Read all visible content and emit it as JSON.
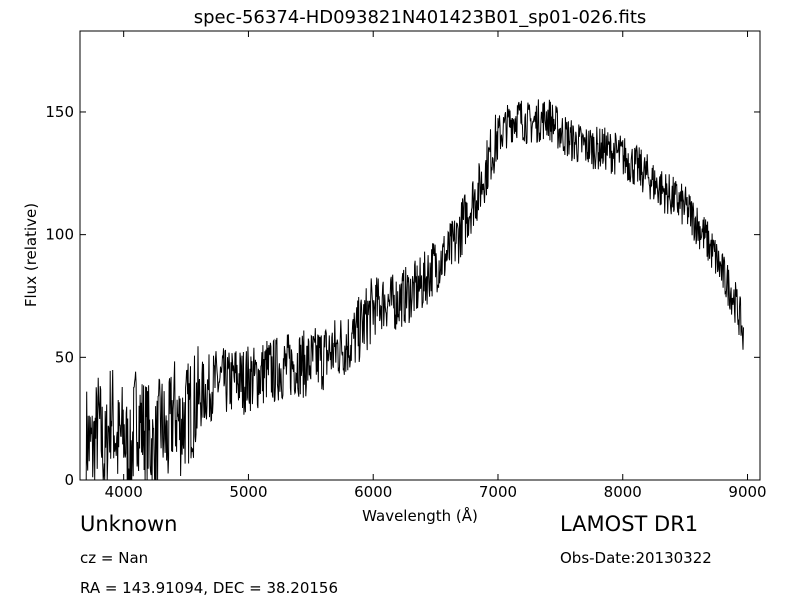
{
  "chart_data": {
    "type": "line",
    "title": "spec-56374-HD093821N401423B01_sp01-026.fits",
    "xlabel": "Wavelength (Å)",
    "ylabel": "Flux (relative)",
    "xlim": [
      3650,
      9100
    ],
    "ylim": [
      0,
      183
    ],
    "xticks": [
      4000,
      5000,
      6000,
      7000,
      8000,
      9000
    ],
    "yticks": [
      0,
      50,
      100,
      150
    ],
    "grid": false,
    "series": [
      {
        "x": [
          3700,
          3750,
          3800,
          3850,
          3900,
          3950,
          4000,
          4050,
          4100,
          4150,
          4200,
          4250,
          4300,
          4350,
          4400,
          4450,
          4500,
          4550,
          4600,
          4650,
          4700,
          4750,
          4800,
          4850,
          4900,
          4950,
          5000,
          5050,
          5100,
          5150,
          5200,
          5250,
          5300,
          5350,
          5400,
          5450,
          5500,
          5550,
          5600,
          5650,
          5700,
          5750,
          5800,
          5850,
          5900,
          5950,
          6000,
          6050,
          6100,
          6150,
          6200,
          6250,
          6300,
          6350,
          6400,
          6450,
          6500,
          6550,
          6600,
          6650,
          6700,
          6750,
          6800,
          6850,
          6900,
          6950,
          7000,
          7050,
          7100,
          7150,
          7200,
          7250,
          7300,
          7350,
          7400,
          7450,
          7500,
          7550,
          7600,
          7650,
          7700,
          7750,
          7800,
          7850,
          7900,
          7950,
          8000,
          8050,
          8100,
          8150,
          8200,
          8250,
          8300,
          8350,
          8400,
          8450,
          8500,
          8550,
          8600,
          8650,
          8700,
          8750,
          8800,
          8850,
          8900,
          8950,
          8970
        ],
        "y": [
          18,
          12,
          24,
          8,
          30,
          14,
          20,
          6,
          28,
          22,
          18,
          10,
          24,
          14,
          30,
          22,
          26,
          30,
          33,
          36,
          38,
          40,
          40,
          39,
          42,
          40,
          42,
          41,
          43,
          45,
          44,
          46,
          46,
          47,
          48,
          47,
          48,
          49,
          50,
          52,
          53,
          55,
          56,
          58,
          62,
          66,
          70,
          72,
          73,
          72,
          73,
          75,
          76,
          78,
          80,
          85,
          88,
          90,
          92,
          96,
          102,
          108,
          114,
          118,
          126,
          134,
          140,
          143,
          146,
          148,
          147,
          145,
          146,
          147,
          148,
          145,
          142,
          140,
          138,
          137,
          136,
          136,
          135,
          135,
          134,
          133,
          132,
          130,
          128,
          126,
          124,
          121,
          119,
          117,
          115,
          113,
          111,
          108,
          104,
          100,
          95,
          90,
          84,
          79,
          73,
          64,
          56
        ]
      }
    ]
  },
  "info": {
    "object_class": "Unknown",
    "cz": "cz = Nan",
    "radec": "RA = 143.91094, DEC = 38.20156",
    "survey": "LAMOST DR1",
    "obs_date": "Obs-Date:20130322"
  }
}
